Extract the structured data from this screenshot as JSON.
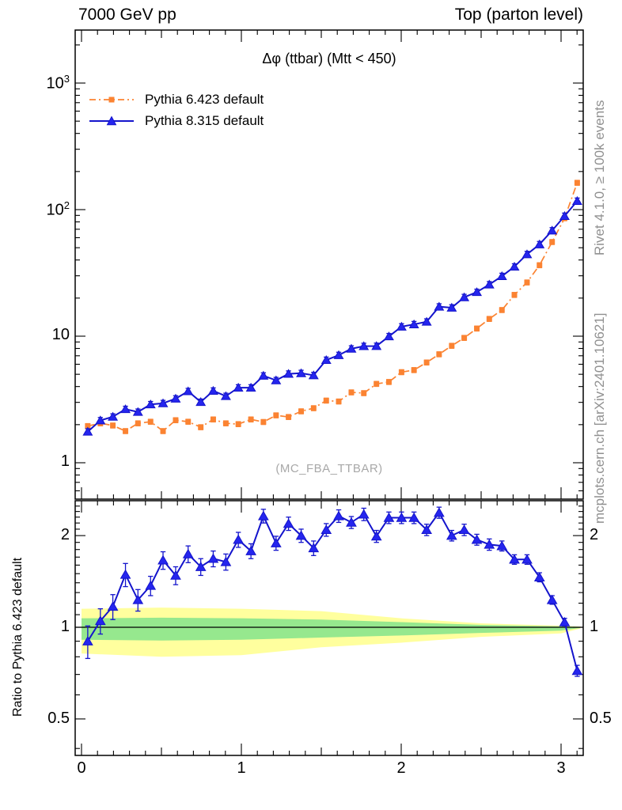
{
  "header": {
    "left_title": "7000 GeV pp",
    "right_title": "Top (parton level)"
  },
  "side_notes": {
    "top_vertical": "Rivet 4.1.0, ≥ 100k events",
    "bottom_vertical": "mcplots.cern.ch [arXiv:2401.10621]"
  },
  "watermark": "(MC_FBA_TTBAR)",
  "colors": {
    "pythia6_orange": "#fb8332",
    "pythia8_blue": "#1414cc",
    "pythia8_marker": "#2525ee",
    "band_yellow": "#ffff9e",
    "band_green": "#96e88e",
    "gray_text": "#909090",
    "watermark_gray": "#a8a8a8",
    "frame_black": "#000000"
  },
  "chart_data": {
    "type": "line",
    "title": "Δφ (ttbar) (Mtt < 450)",
    "xlabel": "",
    "xlim": [
      -0.04,
      3.14
    ],
    "xticks": [
      0,
      1,
      2,
      3
    ],
    "x_minor_step": 0.1,
    "x_medium_step": 0.5,
    "x": [
      0.039,
      0.118,
      0.196,
      0.275,
      0.353,
      0.432,
      0.51,
      0.589,
      0.667,
      0.746,
      0.824,
      0.903,
      0.981,
      1.06,
      1.138,
      1.217,
      1.295,
      1.374,
      1.452,
      1.531,
      1.609,
      1.688,
      1.766,
      1.845,
      1.923,
      2.002,
      2.08,
      2.159,
      2.237,
      2.316,
      2.394,
      2.473,
      2.551,
      2.63,
      2.708,
      2.787,
      2.865,
      2.944,
      3.022,
      3.101
    ],
    "series": [
      {
        "name": "Pythia 6.423 default",
        "legend_label": "Pythia 6.423 default",
        "color_key": "pythia6_orange",
        "marker": "square",
        "linestyle": "dashdot",
        "rel_err": 0.045,
        "values": [
          1.95,
          2.05,
          1.97,
          1.78,
          2.05,
          2.11,
          1.78,
          2.17,
          2.11,
          1.91,
          2.2,
          2.05,
          2.02,
          2.2,
          2.1,
          2.37,
          2.3,
          2.55,
          2.7,
          3.1,
          3.05,
          3.6,
          3.55,
          4.2,
          4.35,
          5.2,
          5.4,
          6.2,
          7.2,
          8.4,
          9.7,
          11.5,
          13.7,
          16.1,
          21.2,
          26.6,
          36.4,
          55.5,
          85.6,
          163
        ]
      },
      {
        "name": "Pythia 8.315 default",
        "legend_label": "Pythia 8.315 default",
        "color_key": "pythia8_blue",
        "marker_color_key": "pythia8_marker",
        "marker": "triangle_up",
        "linestyle": "solid",
        "rel_err": 0.055,
        "values": [
          1.76,
          2.16,
          2.31,
          2.65,
          2.52,
          2.89,
          2.95,
          3.21,
          3.67,
          3.02,
          3.7,
          3.36,
          3.92,
          3.92,
          4.87,
          4.48,
          5.04,
          5.1,
          4.91,
          6.48,
          7.08,
          7.96,
          8.34,
          8.36,
          9.96,
          11.9,
          12.4,
          13.0,
          17.1,
          16.8,
          20.3,
          22.3,
          25.6,
          29.8,
          35.4,
          44.4,
          53.1,
          68.3,
          89.0,
          117
        ]
      }
    ],
    "main_panel": {
      "yscale": "log",
      "ylim": [
        0.52,
        2600
      ],
      "yticks": [
        {
          "base": "10",
          "exp": "3",
          "value": 1000
        },
        {
          "base": "10",
          "exp": "2",
          "value": 100
        },
        {
          "base": "10",
          "exp": "",
          "value": 10
        },
        {
          "base": "1",
          "exp": "",
          "value": 1
        }
      ]
    },
    "ratio_panel": {
      "ylabel": "Ratio to Pythia 6.423 default",
      "yscale": "log",
      "ylim": [
        0.38,
        2.61
      ],
      "yticks": [
        {
          "label": "2",
          "value": 2
        },
        {
          "label": "1",
          "value": 1
        },
        {
          "label": "0.5",
          "value": 0.5
        }
      ],
      "ratio_series": {
        "name": "Pythia 8.315 / Pythia 6.423",
        "values": [
          0.9,
          1.05,
          1.17,
          1.49,
          1.23,
          1.37,
          1.66,
          1.48,
          1.74,
          1.58,
          1.68,
          1.64,
          1.94,
          1.78,
          2.32,
          1.89,
          2.19,
          2.0,
          1.82,
          2.09,
          2.32,
          2.21,
          2.35,
          1.99,
          2.29,
          2.29,
          2.29,
          2.09,
          2.38,
          2.0,
          2.09,
          1.94,
          1.87,
          1.85,
          1.67,
          1.67,
          1.46,
          1.23,
          1.04,
          0.72
        ],
        "errors": [
          0.11,
          0.1,
          0.11,
          0.13,
          0.1,
          0.1,
          0.11,
          0.1,
          0.11,
          0.1,
          0.1,
          0.1,
          0.11,
          0.1,
          0.12,
          0.1,
          0.11,
          0.1,
          0.1,
          0.1,
          0.11,
          0.1,
          0.11,
          0.09,
          0.1,
          0.1,
          0.1,
          0.09,
          0.1,
          0.08,
          0.09,
          0.08,
          0.08,
          0.07,
          0.06,
          0.06,
          0.05,
          0.04,
          0.03,
          0.03
        ]
      },
      "bands": {
        "anchors_x": [
          0,
          0.5,
          1.0,
          1.5,
          2.0,
          2.5,
          3.0,
          3.12
        ],
        "yellow_upper": [
          1.15,
          1.16,
          1.15,
          1.13,
          1.07,
          1.03,
          1.012,
          1.005
        ],
        "yellow_lower": [
          0.82,
          0.8,
          0.81,
          0.86,
          0.89,
          0.93,
          0.955,
          0.99
        ],
        "green_upper": [
          1.07,
          1.075,
          1.07,
          1.06,
          1.04,
          1.018,
          1.007,
          1.003
        ],
        "green_lower": [
          0.91,
          0.905,
          0.91,
          0.925,
          0.94,
          0.958,
          0.975,
          0.995
        ]
      }
    }
  }
}
